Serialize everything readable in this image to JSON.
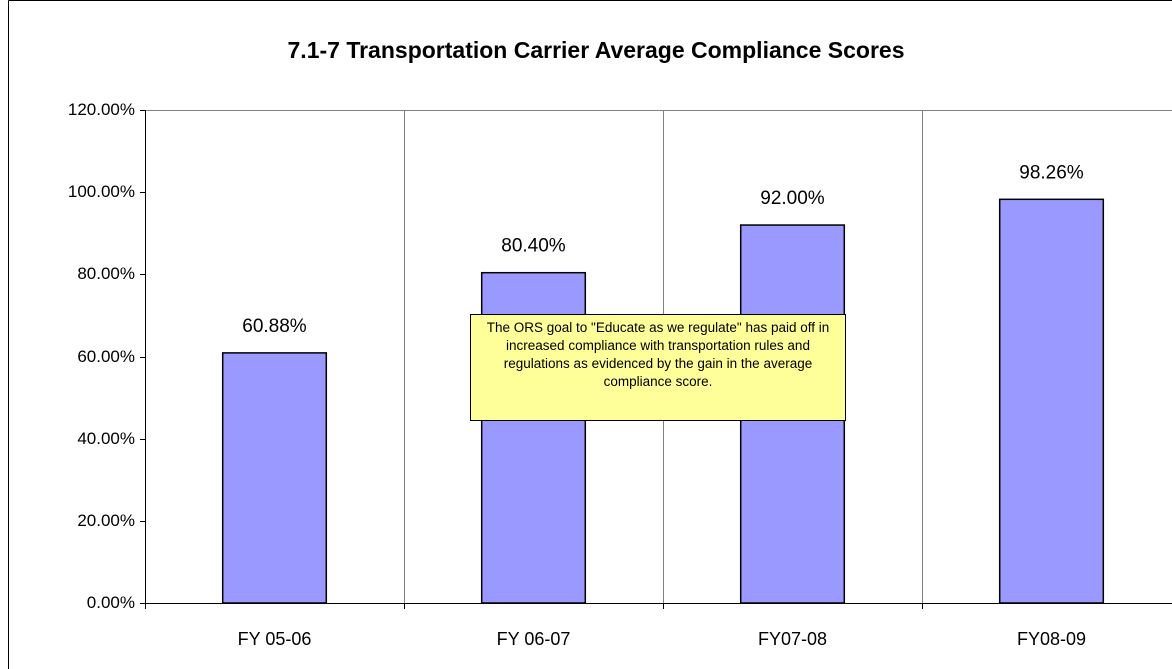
{
  "chart_data": {
    "type": "bar",
    "title": "7.1-7 Transportation Carrier Average Compliance Scores",
    "categories": [
      "FY 05-06",
      "FY 06-07",
      "FY07-08",
      "FY08-09"
    ],
    "values": [
      60.88,
      80.4,
      92,
      98.26
    ],
    "value_labels": [
      "60.88%",
      "80.40%",
      "92.00%",
      "98.26%"
    ],
    "color": "#9999ff",
    "ylim": [
      0,
      120
    ],
    "yticks": [
      {
        "value": 0,
        "label": "0.00%"
      },
      {
        "value": 20,
        "label": "20.00%"
      },
      {
        "value": 40,
        "label": "40.00%"
      },
      {
        "value": 60,
        "label": "60.00%"
      },
      {
        "value": 80,
        "label": "80.00%"
      },
      {
        "value": 100,
        "label": "100.00%"
      },
      {
        "value": 120,
        "label": "120.00%"
      }
    ],
    "grid": true,
    "annotation": "The ORS goal to \"Educate as we regulate\" has paid off in increased compliance with transportation rules and regulations as evidenced by the gain in the average compliance score."
  }
}
